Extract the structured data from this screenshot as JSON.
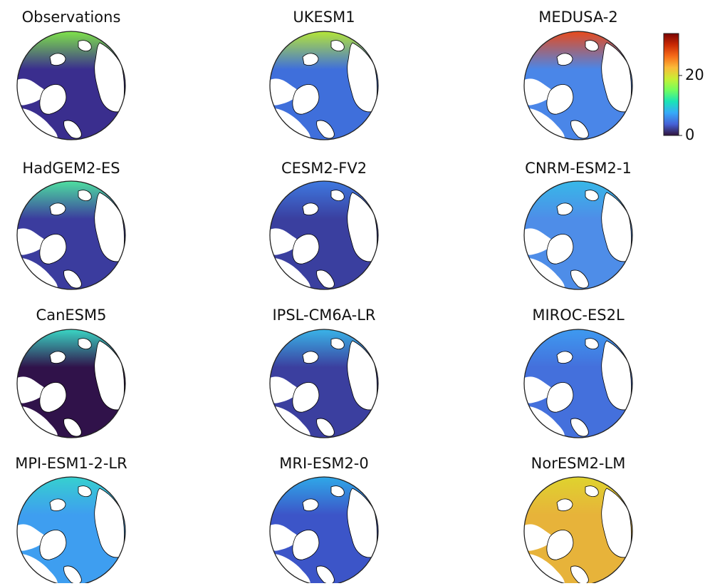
{
  "panels": [
    {
      "title": "Observations",
      "colors": [
        "#7fe34a",
        "#3a2e8e"
      ]
    },
    {
      "title": "UKESM1",
      "colors": [
        "#b5e637",
        "#3f6fdb"
      ]
    },
    {
      "title": "MEDUSA-2",
      "colors": [
        "#e84a1b",
        "#4a86e8"
      ]
    },
    {
      "title": "HadGEM2-ES",
      "colors": [
        "#4ee0a0",
        "#3b3c9e"
      ]
    },
    {
      "title": "CESM2-FV2",
      "colors": [
        "#3e79e0",
        "#3a3f9f"
      ]
    },
    {
      "title": "CNRM-ESM2-1",
      "colors": [
        "#37b8e8",
        "#4e8de8"
      ]
    },
    {
      "title": "CanESM5",
      "colors": [
        "#3ad6c4",
        "#30124a"
      ]
    },
    {
      "title": "IPSL-CM6A-LR",
      "colors": [
        "#3ab4e8",
        "#3b3f9f"
      ]
    },
    {
      "title": "MIROC-ES2L",
      "colors": [
        "#3e9af0",
        "#4470dc"
      ]
    },
    {
      "title": "MPI-ESM1-2-LR",
      "colors": [
        "#36d0cf",
        "#3e9ef0"
      ]
    },
    {
      "title": "MRI-ESM2-0",
      "colors": [
        "#2fa8e8",
        "#3c55c8"
      ]
    },
    {
      "title": "NorESM2-LM",
      "colors": [
        "#dfd32e",
        "#e7b33a"
      ]
    }
  ],
  "colorbar": {
    "lim": [
      0,
      34
    ],
    "ticks": [
      0,
      20
    ],
    "colormap": [
      "#30123b",
      "#4662d7",
      "#36aaf9",
      "#1ae4b6",
      "#72fe5e",
      "#c8ef34",
      "#faba39",
      "#f66b19",
      "#ca2a04",
      "#7a0403"
    ]
  }
}
